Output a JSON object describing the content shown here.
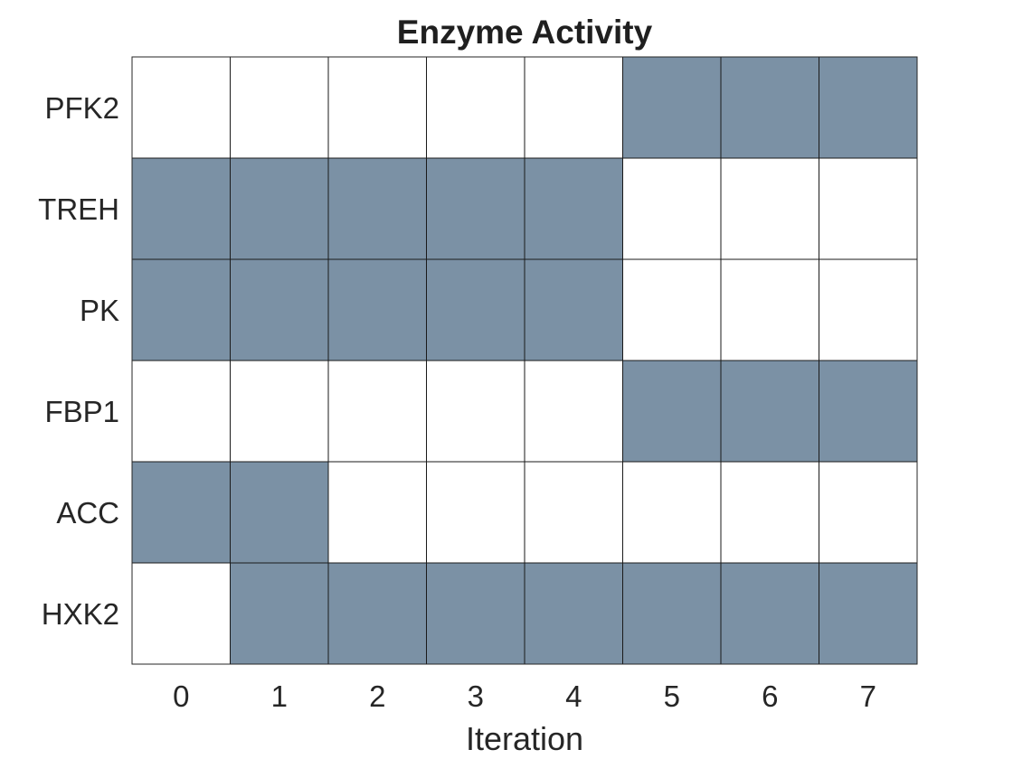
{
  "chart_data": {
    "type": "heatmap",
    "title": "Enzyme Activity",
    "xlabel": "Iteration",
    "ylabel": "",
    "x": [
      "0",
      "1",
      "2",
      "3",
      "4",
      "5",
      "6",
      "7"
    ],
    "y": [
      "PFK2",
      "TREH",
      "PK",
      "FBP1",
      "ACC",
      "HXK2"
    ],
    "values": [
      [
        0,
        0,
        0,
        0,
        0,
        1,
        1,
        1
      ],
      [
        1,
        1,
        1,
        1,
        1,
        0,
        0,
        0
      ],
      [
        1,
        1,
        1,
        1,
        1,
        0,
        0,
        0
      ],
      [
        0,
        0,
        0,
        0,
        0,
        1,
        1,
        1
      ],
      [
        1,
        1,
        0,
        0,
        0,
        0,
        0,
        0
      ],
      [
        0,
        1,
        1,
        1,
        1,
        1,
        1,
        1
      ]
    ],
    "colors": {
      "active": "#7b91a5",
      "inactive": "#ffffff"
    },
    "grid": true,
    "legend": "none"
  }
}
